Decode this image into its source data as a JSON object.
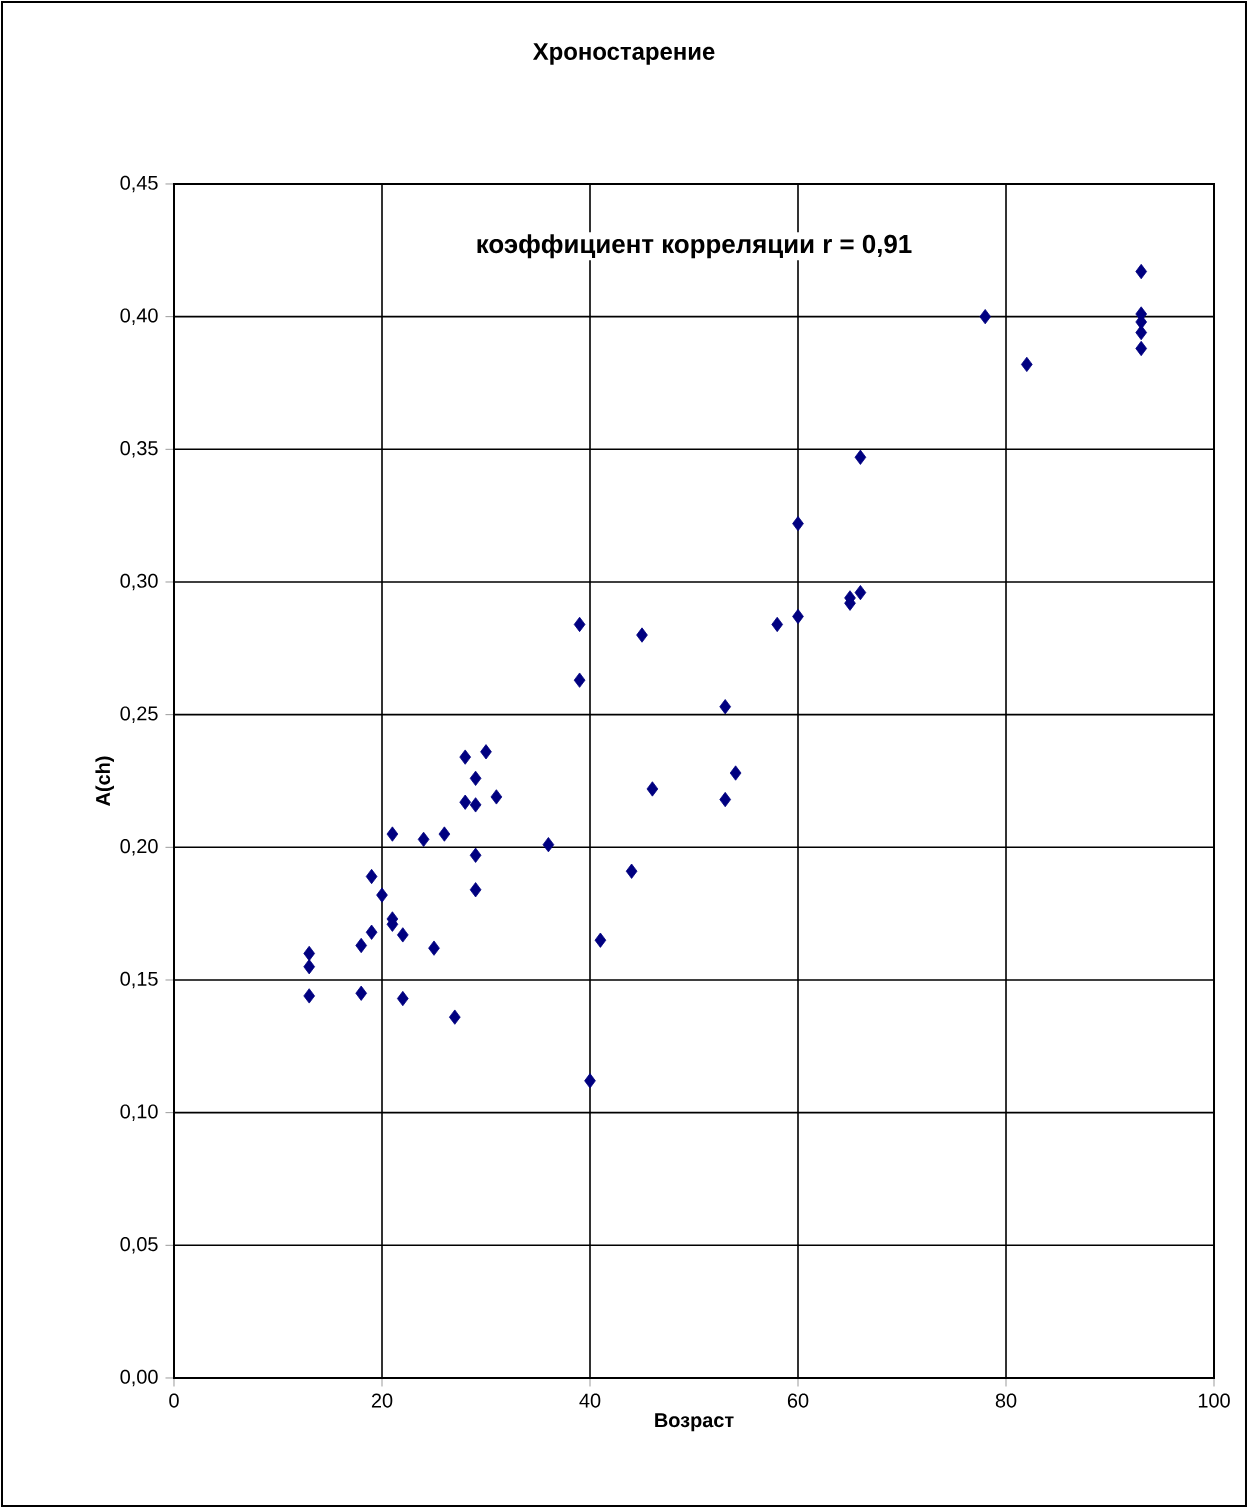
{
  "chart_data": {
    "type": "scatter",
    "title": "Хроностарение",
    "xlabel": "Возраст",
    "ylabel": "A(ch)",
    "annotations": [
      "коэффициент корреляции r = 0,91"
    ],
    "xlim": [
      0,
      100
    ],
    "xticks": [
      0,
      20,
      40,
      60,
      80,
      100
    ],
    "ylim": [
      0,
      0.45
    ],
    "yticks": [
      {
        "value": 0,
        "label": "0,00"
      },
      {
        "value": 0.05,
        "label": "0,05"
      },
      {
        "value": 0.1,
        "label": "0,10"
      },
      {
        "value": 0.15,
        "label": "0,15"
      },
      {
        "value": 0.2,
        "label": "0,20"
      },
      {
        "value": 0.25,
        "label": "0,25"
      },
      {
        "value": 0.3,
        "label": "0,30"
      },
      {
        "value": 0.35,
        "label": "0,35"
      },
      {
        "value": 0.4,
        "label": "0,40"
      },
      {
        "value": 0.45,
        "label": "0,45"
      }
    ],
    "grid": true,
    "marker": "diamond",
    "series": [
      {
        "color": "#000080",
        "x": [
          13,
          13,
          13,
          18,
          18,
          19,
          19,
          20,
          21,
          21,
          22,
          21,
          22,
          24,
          25,
          26,
          27,
          28,
          28,
          29,
          29,
          29,
          29,
          30,
          31,
          36,
          39,
          39,
          40,
          41,
          44,
          45,
          46,
          53,
          53,
          54,
          58,
          60,
          60,
          65,
          65,
          66,
          66,
          78,
          82,
          93,
          93,
          93,
          93,
          93
        ],
        "values": [
          0.16,
          0.155,
          0.144,
          0.145,
          0.163,
          0.168,
          0.189,
          0.182,
          0.173,
          0.171,
          0.167,
          0.205,
          0.143,
          0.203,
          0.162,
          0.205,
          0.136,
          0.234,
          0.217,
          0.226,
          0.216,
          0.197,
          0.184,
          0.236,
          0.219,
          0.201,
          0.284,
          0.263,
          0.112,
          0.165,
          0.191,
          0.28,
          0.222,
          0.253,
          0.218,
          0.228,
          0.284,
          0.287,
          0.322,
          0.294,
          0.292,
          0.296,
          0.347,
          0.4,
          0.382,
          0.417,
          0.401,
          0.398,
          0.394,
          0.388
        ]
      }
    ]
  }
}
